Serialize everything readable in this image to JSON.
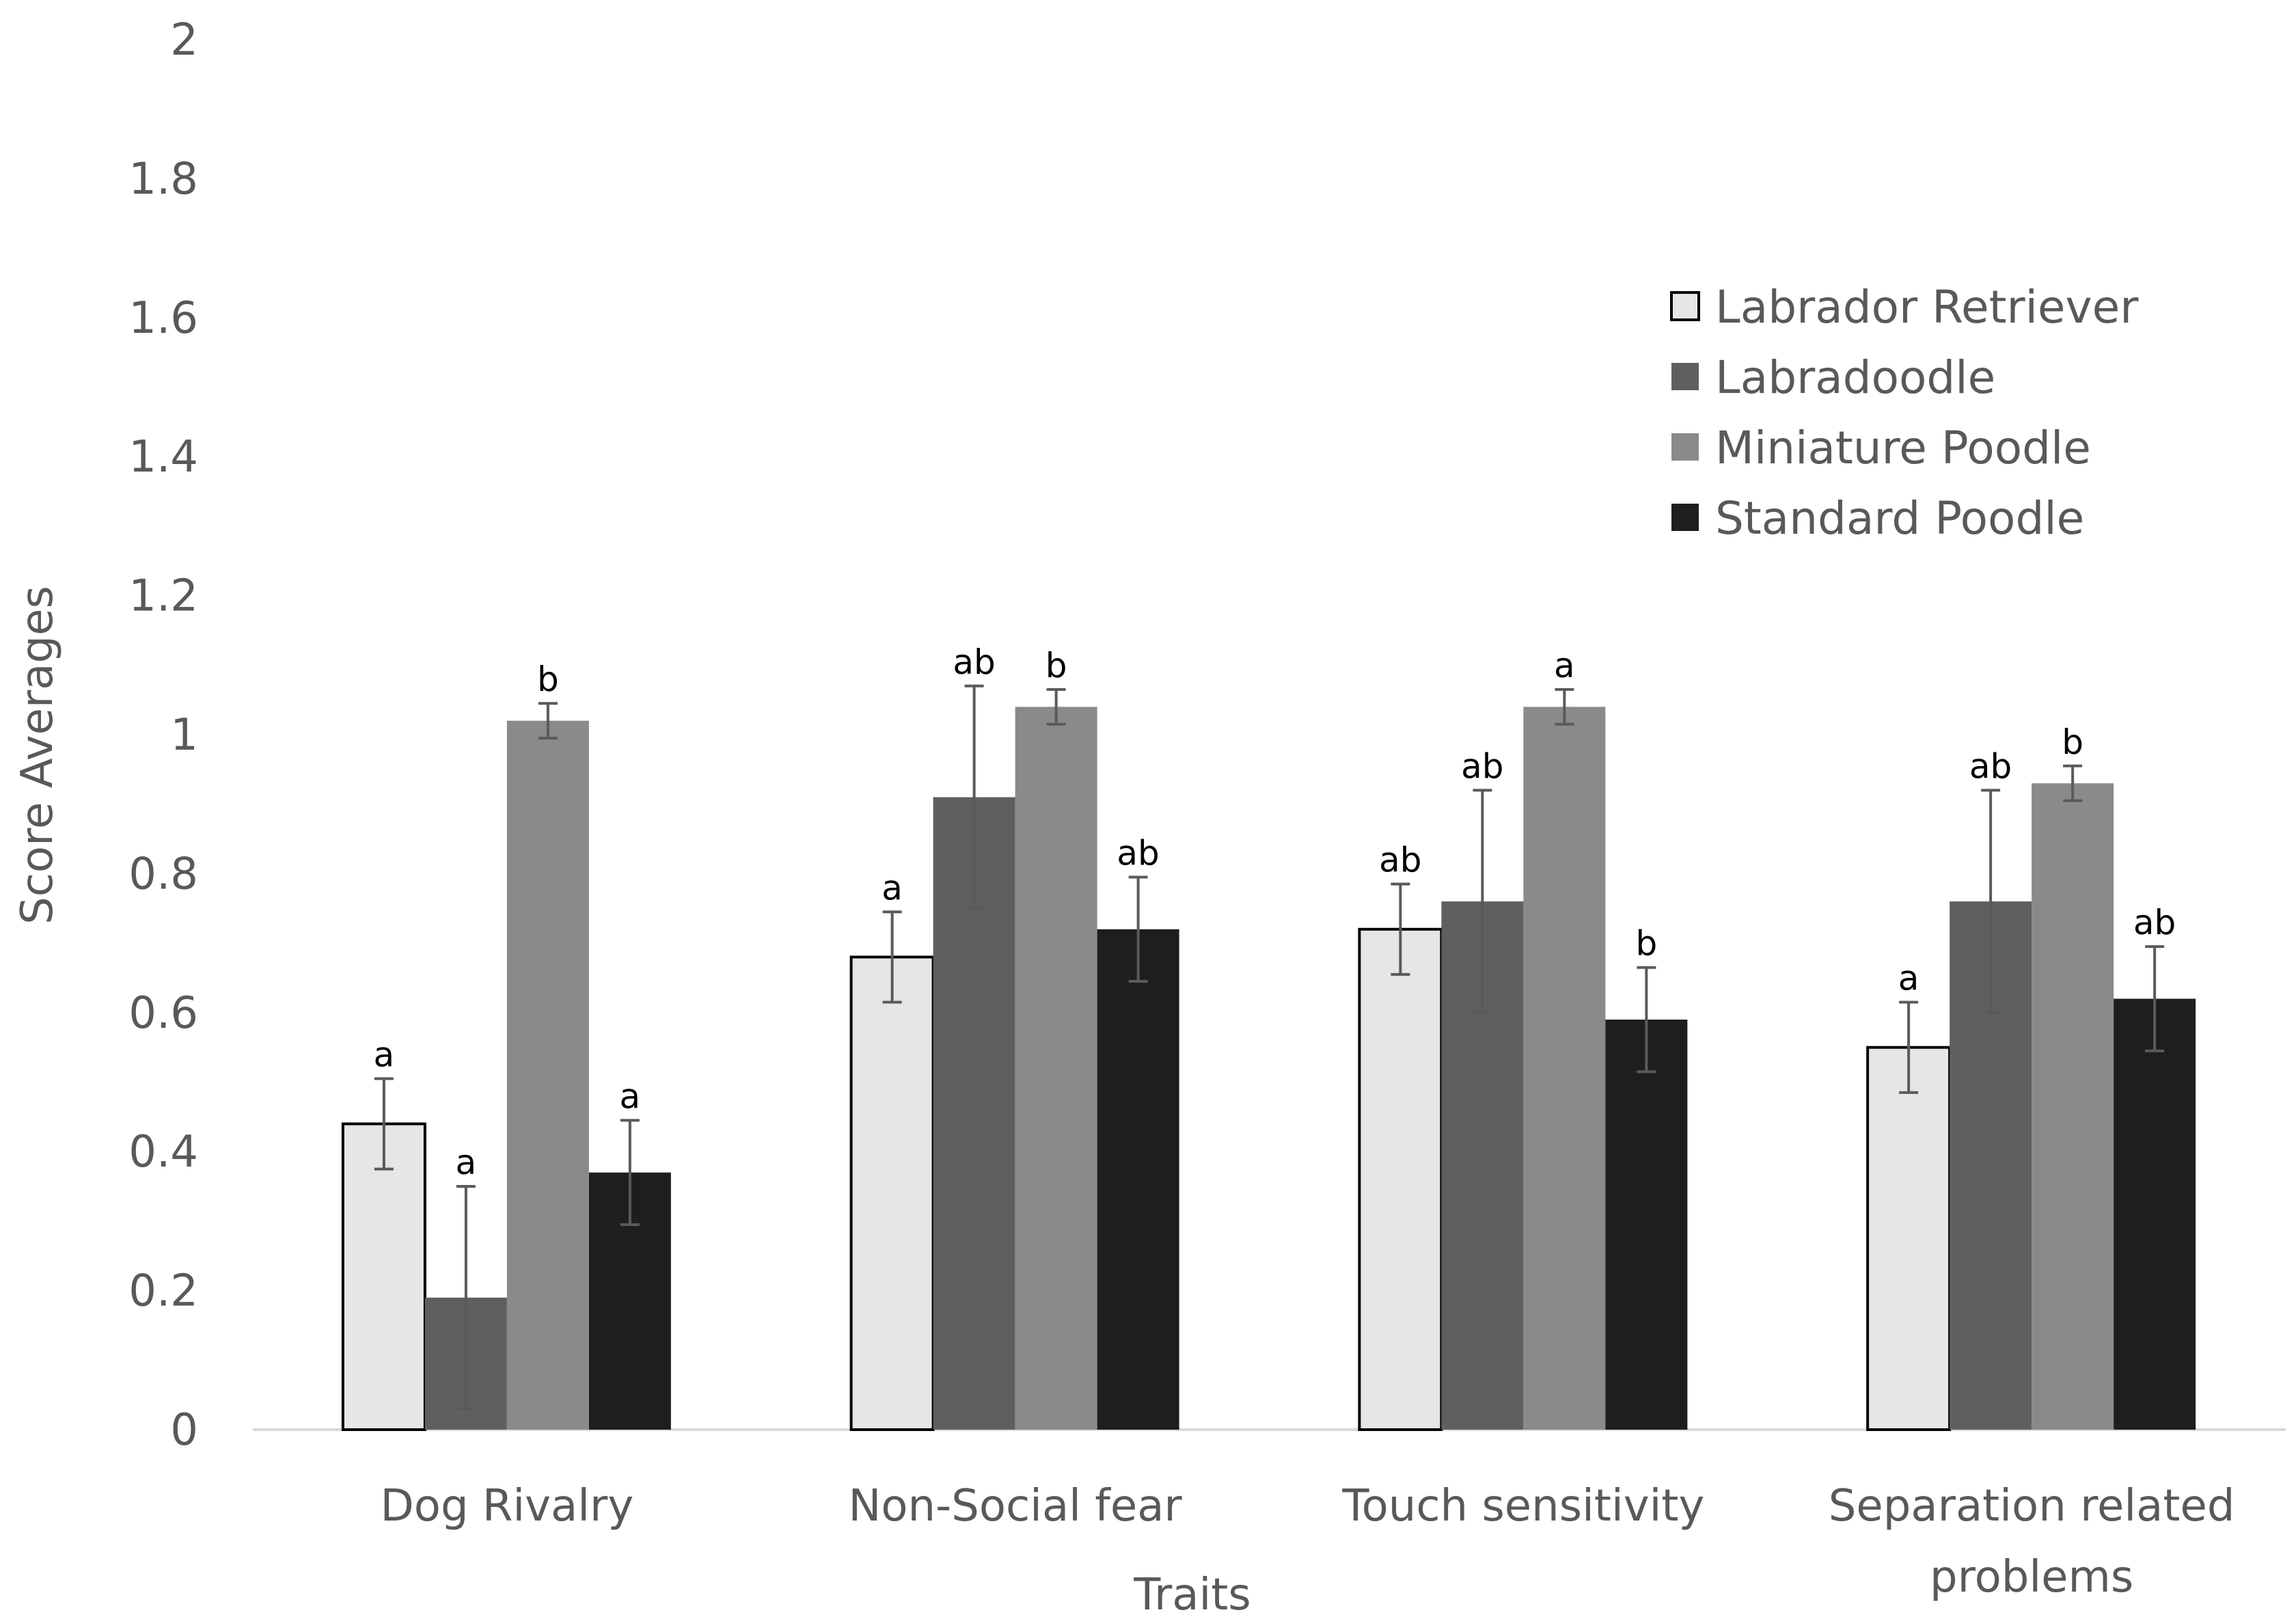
{
  "chart_data": {
    "type": "bar",
    "categories": [
      "Dog Rivalry",
      "Non-Social fear",
      "Touch sensitivity",
      "Separation related problems"
    ],
    "series": [
      {
        "name": "Labrador Retriever",
        "color": "#e6e6e6",
        "outline": "#000000",
        "values": [
          0.44,
          0.68,
          0.72,
          0.55
        ],
        "errors": [
          0.065,
          0.065,
          0.065,
          0.065
        ],
        "letters": [
          "a",
          "a",
          "ab",
          "a"
        ]
      },
      {
        "name": "Labradoodle",
        "color": "#5f5f5f",
        "values": [
          0.19,
          0.91,
          0.76,
          0.76
        ],
        "errors": [
          0.16,
          0.16,
          0.16,
          0.16
        ],
        "letters": [
          "a",
          "ab",
          "ab",
          "ab"
        ]
      },
      {
        "name": "Miniature Poodle",
        "color": "#8a8a8a",
        "values": [
          1.02,
          1.04,
          1.04,
          0.93
        ],
        "errors": [
          0.025,
          0.025,
          0.025,
          0.025
        ],
        "letters": [
          "b",
          "b",
          "a",
          "b"
        ]
      },
      {
        "name": "Standard Poodle",
        "color": "#1e1e1e",
        "values": [
          0.37,
          0.72,
          0.59,
          0.62
        ],
        "errors": [
          0.075,
          0.075,
          0.075,
          0.075
        ],
        "letters": [
          "a",
          "ab",
          "b",
          "ab"
        ]
      }
    ],
    "xlabel": "Traits",
    "ylabel": "Score Averages",
    "ylim": [
      0,
      2
    ],
    "yticks": [
      "0",
      "0.2",
      "0.4",
      "0.6",
      "0.8",
      "1",
      "1.2",
      "1.4",
      "1.6",
      "1.8",
      "2"
    ],
    "grid": false,
    "legend_position": "top-right"
  }
}
